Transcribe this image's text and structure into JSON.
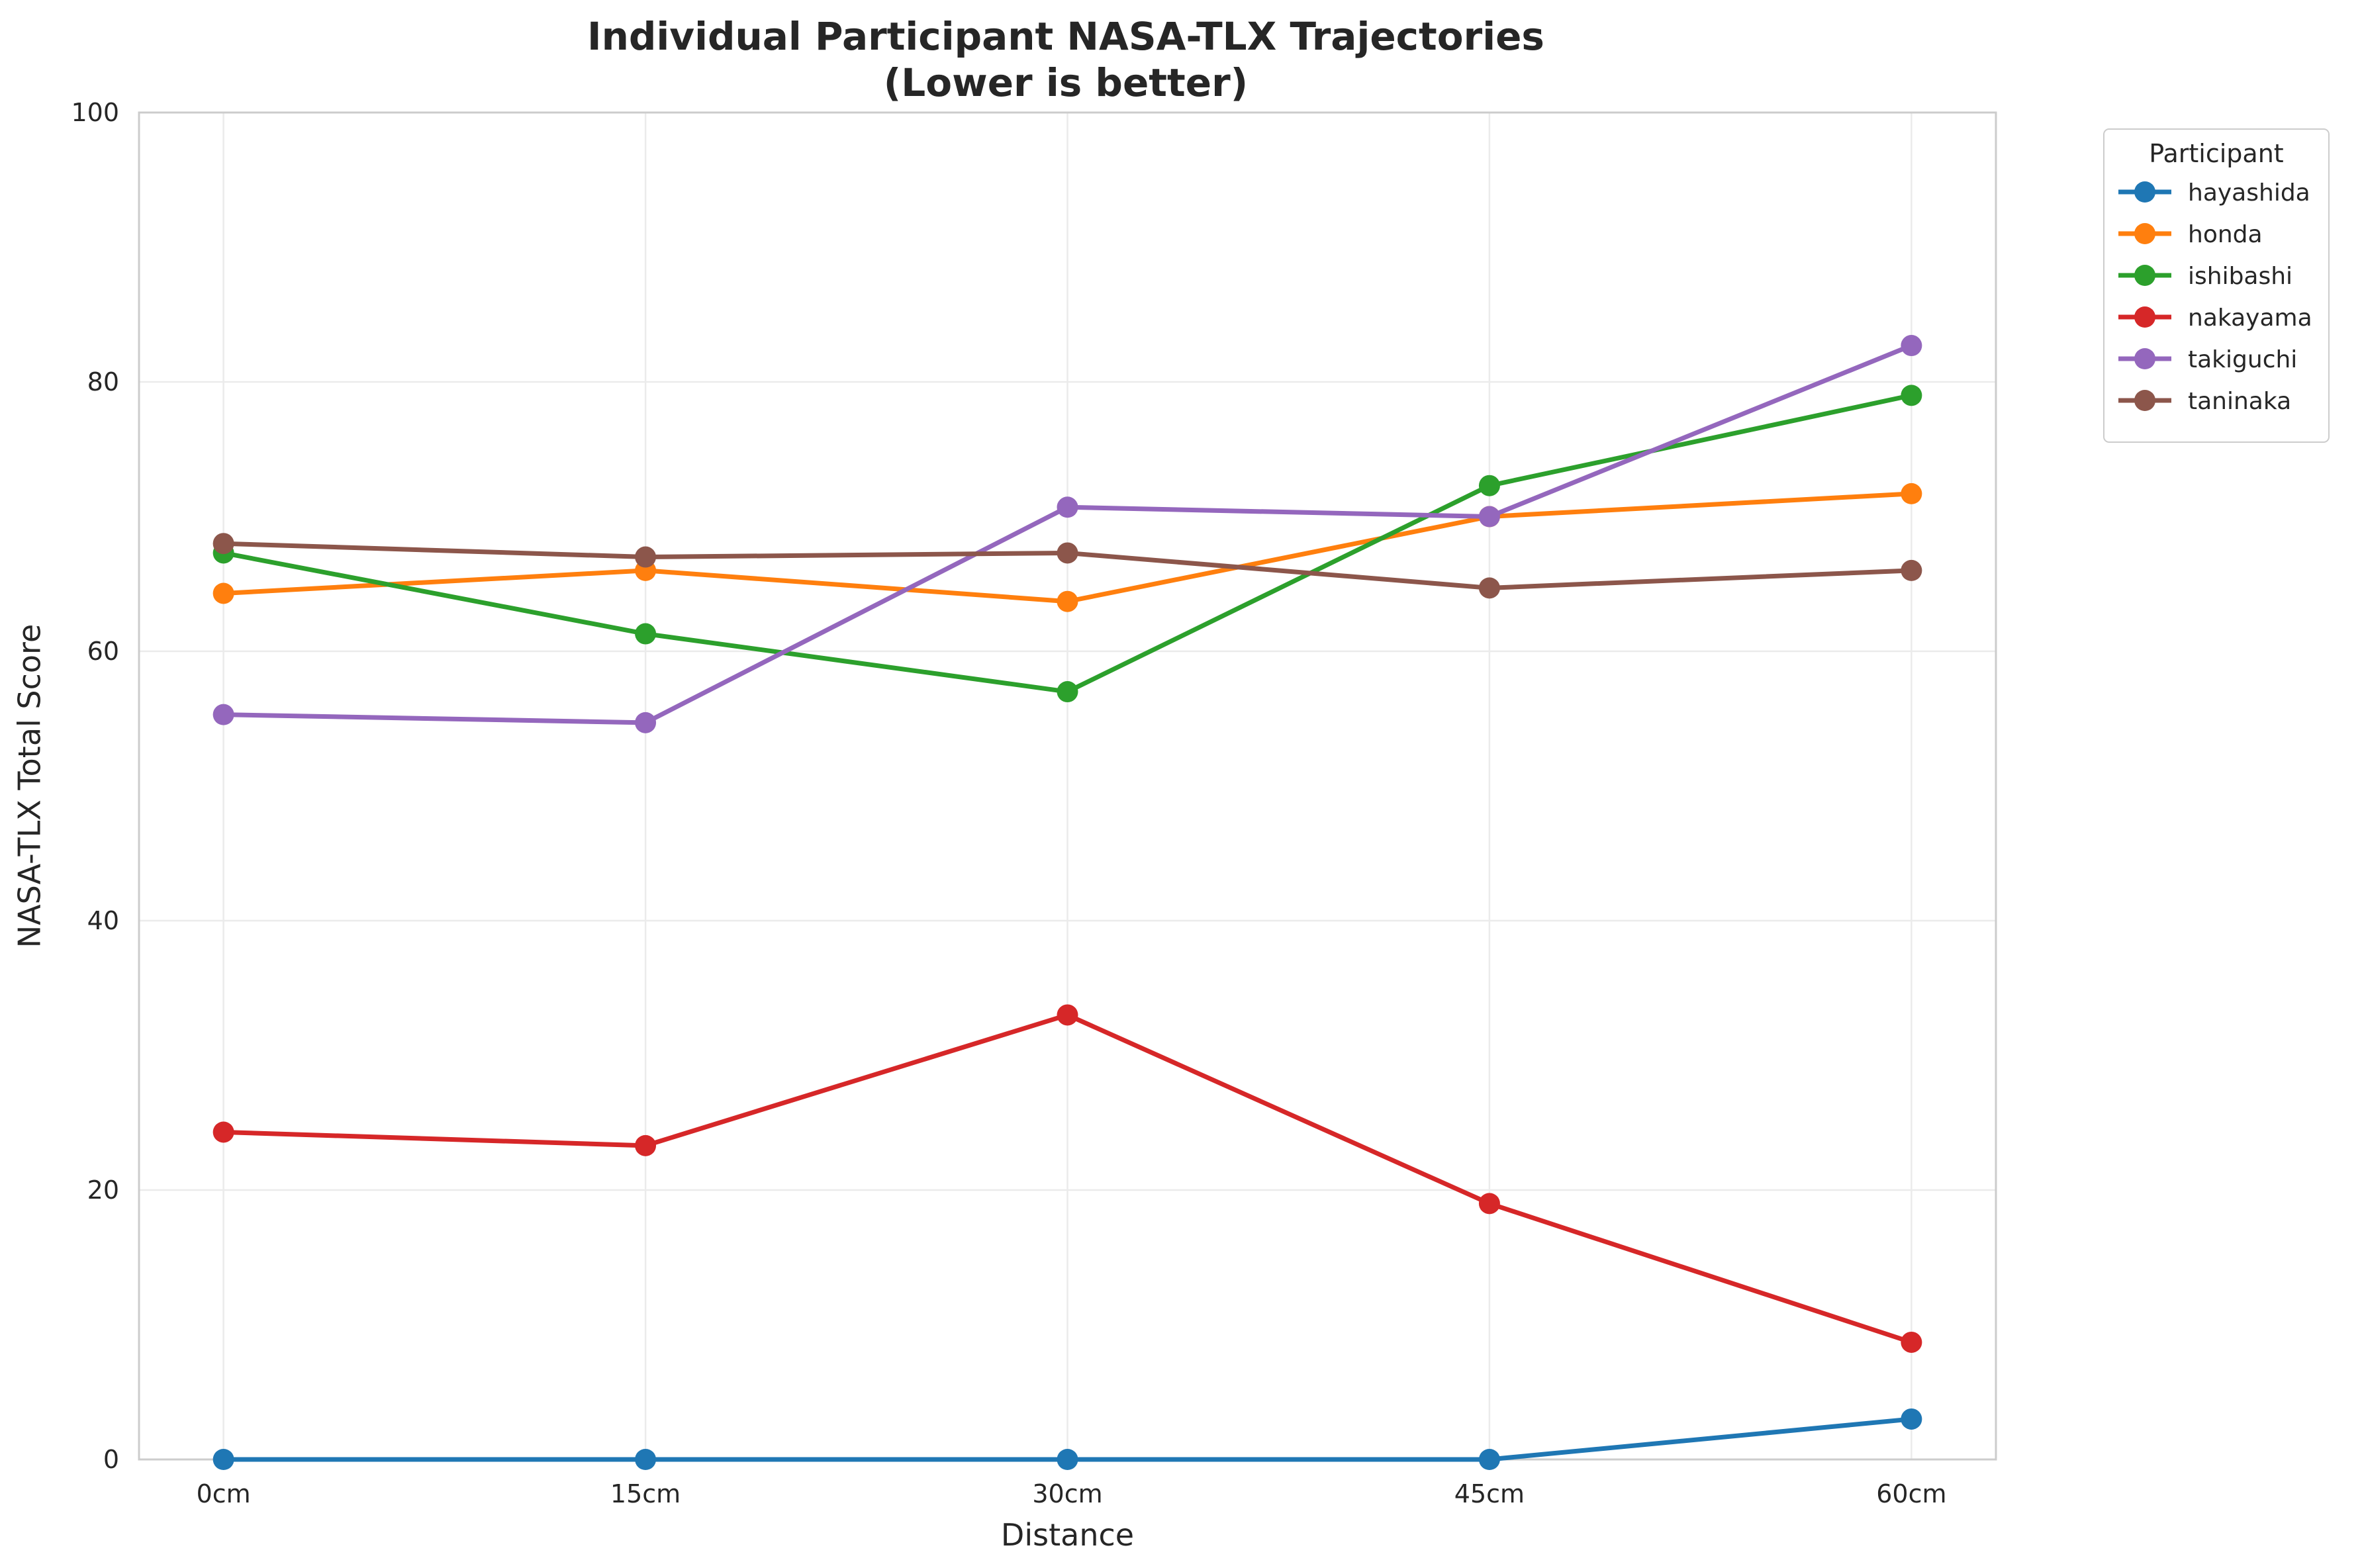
{
  "chart_data": {
    "type": "line",
    "title": "Individual Participant NASA-TLX Trajectories",
    "subtitle": "(Lower is better)",
    "xlabel": "Distance",
    "ylabel": "NASA-TLX Total Score",
    "categories": [
      "0cm",
      "15cm",
      "30cm",
      "45cm",
      "60cm"
    ],
    "ylim": [
      0,
      100
    ],
    "yticks": [
      0,
      20,
      40,
      60,
      80,
      100
    ],
    "grid": true,
    "legend": {
      "title": "Participant",
      "placement": "outside-top-right"
    },
    "series": [
      {
        "name": "hayashida",
        "color": "#1f77b4",
        "values": [
          0,
          0,
          0,
          0,
          3
        ]
      },
      {
        "name": "honda",
        "color": "#ff7f0e",
        "values": [
          64.3,
          66.0,
          63.7,
          70.0,
          71.7
        ]
      },
      {
        "name": "ishibashi",
        "color": "#2ca02c",
        "values": [
          67.3,
          61.3,
          57.0,
          72.3,
          79.0
        ]
      },
      {
        "name": "nakayama",
        "color": "#d62728",
        "values": [
          24.3,
          23.3,
          33.0,
          19.0,
          8.7
        ]
      },
      {
        "name": "takiguchi",
        "color": "#9467bd",
        "values": [
          55.3,
          54.7,
          70.7,
          70.0,
          82.7
        ]
      },
      {
        "name": "taninaka",
        "color": "#8c564b",
        "values": [
          68.0,
          67.0,
          67.3,
          64.7,
          66.0
        ]
      }
    ]
  }
}
